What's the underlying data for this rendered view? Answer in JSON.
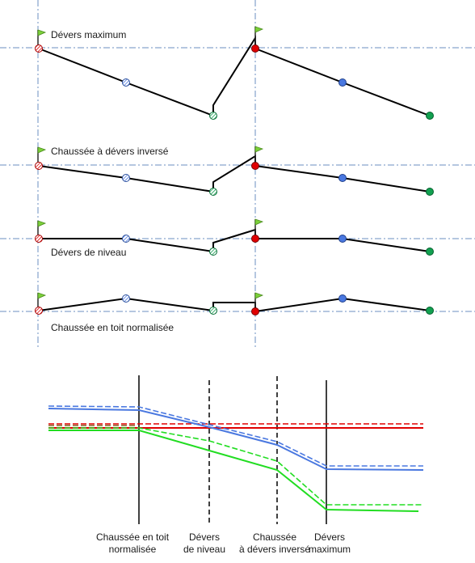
{
  "top_panel": {
    "rows": [
      {
        "label": "Dévers maximum"
      },
      {
        "label": "Chaussée à dévers inversé"
      },
      {
        "label": "Dévers de niveau"
      },
      {
        "label": "Chaussée en toit normalisée"
      }
    ]
  },
  "bottom_panel": {
    "stations": [
      {
        "line1": "Chaussée en toit",
        "line2": "normalisée"
      },
      {
        "line1": "Dévers",
        "line2": "de niveau"
      },
      {
        "line1": "Chaussée",
        "line2": "à dévers inversé"
      },
      {
        "line1": "Dévers",
        "line2": "maximum"
      }
    ]
  },
  "colors": {
    "red": "#e00000",
    "blue": "#4a78e0",
    "green": "#22dd22",
    "dark_green": "#12a050",
    "brown": "#8b5a1e",
    "guide": "#6b8fc0",
    "flag": "#7cd13a"
  },
  "icons": [
    "flag-icon",
    "hatched-point-icon",
    "solid-point-icon"
  ]
}
